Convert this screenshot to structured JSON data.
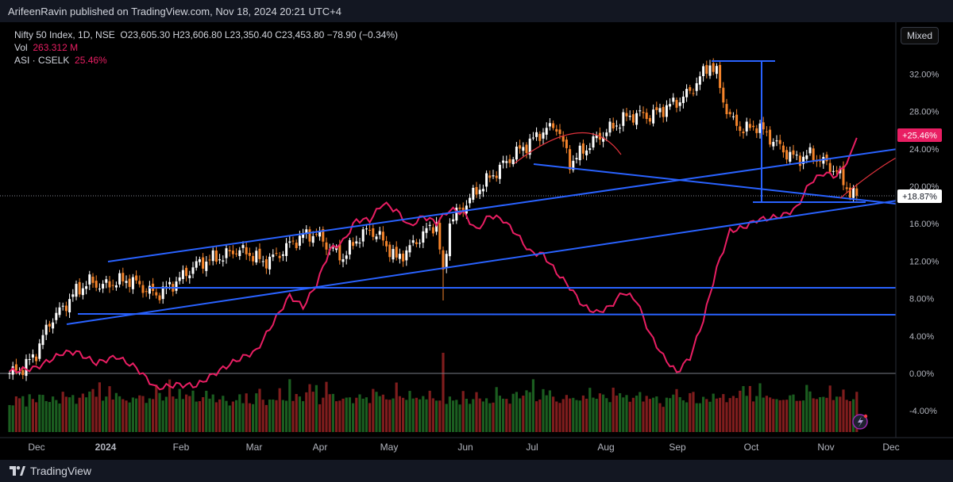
{
  "publisher": "ArifeenRavin published on TradingView.com, Nov 18, 2024 20:21 UTC+4",
  "brand": "TradingView",
  "mixed_label": "Mixed",
  "legend": {
    "symbol": "Nifty 50 Index, 1D, NSE",
    "ohlc": "O23,605.30  H23,606.80  L23,350.40  C23,453.80  −78.90 (−0.34%)",
    "vol_label": "Vol",
    "vol_value": "263.312 M",
    "asi_label": "ASI · CSELK",
    "asi_value": "25.46%"
  },
  "colors": {
    "up": "#ffffff",
    "down": "#f5842b",
    "asi": "#e91e63",
    "trendline": "#2962ff",
    "curve": "#e0323c",
    "vol_up": "#1b5e20",
    "vol_down": "#7f1d1d"
  },
  "chart_data": {
    "type": "candlestick",
    "symbol": "Nifty 50 Index",
    "interval": "1D",
    "exchange": "NSE",
    "y_axis_mode": "percent",
    "y_ticks": [
      "32.00%",
      "28.00%",
      "24.00%",
      "20.00%",
      "16.00%",
      "12.00%",
      "8.00%",
      "4.00%",
      "0.00%",
      "-4.00%"
    ],
    "y_tick_values": [
      32,
      28,
      24,
      20,
      16,
      12,
      8,
      4,
      0,
      -4
    ],
    "x_ticks": [
      "Dec",
      "2024",
      "Feb",
      "Mar",
      "Apr",
      "May",
      "Jun",
      "Jul",
      "Aug",
      "Sep",
      "Oct",
      "Nov",
      "Dec"
    ],
    "last_price_label": "+18.87%",
    "last_price_value": 18.87,
    "asi_label_badge": "+25.46%",
    "asi_value": 25.46,
    "price_path": [
      [
        0,
        0
      ],
      [
        4,
        0.5
      ],
      [
        8,
        2.2
      ],
      [
        12,
        5.5
      ],
      [
        16,
        7
      ],
      [
        20,
        8.8
      ],
      [
        24,
        9.8
      ],
      [
        28,
        9.3
      ],
      [
        32,
        9.8
      ],
      [
        36,
        10.0
      ],
      [
        40,
        9.2
      ],
      [
        44,
        8.4
      ],
      [
        48,
        9.3
      ],
      [
        52,
        10.4
      ],
      [
        56,
        11.6
      ],
      [
        60,
        12.2
      ],
      [
        64,
        12.5
      ],
      [
        68,
        13.2
      ],
      [
        72,
        12.8
      ],
      [
        76,
        11.9
      ],
      [
        80,
        12.5
      ],
      [
        84,
        13.8
      ],
      [
        88,
        14.7
      ],
      [
        92,
        14.9
      ],
      [
        96,
        13.4
      ],
      [
        100,
        12.4
      ],
      [
        104,
        14.3
      ],
      [
        108,
        15.4
      ],
      [
        112,
        14.2
      ],
      [
        116,
        12.2
      ],
      [
        120,
        13.4
      ],
      [
        124,
        14.9
      ],
      [
        128,
        16.1
      ],
      [
        130,
        10.3
      ],
      [
        132,
        16.3
      ],
      [
        136,
        17.8
      ],
      [
        140,
        19.5
      ],
      [
        144,
        20.9
      ],
      [
        148,
        22.3
      ],
      [
        152,
        23.6
      ],
      [
        156,
        24.7
      ],
      [
        160,
        25.9
      ],
      [
        164,
        26.5
      ],
      [
        168,
        22.5
      ],
      [
        172,
        23.8
      ],
      [
        176,
        25.1
      ],
      [
        180,
        26.1
      ],
      [
        184,
        27.2
      ],
      [
        188,
        27.7
      ],
      [
        192,
        27.5
      ],
      [
        196,
        28.3
      ],
      [
        200,
        29.0
      ],
      [
        204,
        30.1
      ],
      [
        208,
        32.1
      ],
      [
        210,
        33.1
      ],
      [
        212,
        32.0
      ],
      [
        214,
        29.2
      ],
      [
        216,
        27.3
      ],
      [
        220,
        26.0
      ],
      [
        224,
        26.5
      ],
      [
        228,
        25.2
      ],
      [
        232,
        23.8
      ],
      [
        236,
        22.9
      ],
      [
        240,
        23.4
      ],
      [
        244,
        22.6
      ],
      [
        248,
        21.6
      ],
      [
        250,
        20.5
      ],
      [
        252,
        19.3
      ],
      [
        254,
        18.9
      ]
    ],
    "asi_path": [
      [
        0,
        0.2
      ],
      [
        8,
        0.6
      ],
      [
        16,
        2.2
      ],
      [
        20,
        2.3
      ],
      [
        26,
        1.1
      ],
      [
        32,
        1.8
      ],
      [
        38,
        0.6
      ],
      [
        44,
        -1.6
      ],
      [
        50,
        -1.2
      ],
      [
        56,
        -1.3
      ],
      [
        62,
        0.1
      ],
      [
        68,
        1.4
      ],
      [
        74,
        2.4
      ],
      [
        80,
        6
      ],
      [
        84,
        8.3
      ],
      [
        88,
        7.1
      ],
      [
        92,
        9.5
      ],
      [
        96,
        13.2
      ],
      [
        100,
        14.1
      ],
      [
        104,
        16.4
      ],
      [
        108,
        16.4
      ],
      [
        112,
        18.2
      ],
      [
        116,
        17.4
      ],
      [
        120,
        15.7
      ],
      [
        124,
        16.8
      ],
      [
        128,
        16.1
      ],
      [
        132,
        17.5
      ],
      [
        136,
        17.2
      ],
      [
        140,
        15.3
      ],
      [
        144,
        16.9
      ],
      [
        148,
        16.4
      ],
      [
        152,
        14.9
      ],
      [
        156,
        13
      ],
      [
        160,
        12.7
      ],
      [
        164,
        10.8
      ],
      [
        168,
        9.2
      ],
      [
        172,
        7.2
      ],
      [
        176,
        6.5
      ],
      [
        180,
        7.1
      ],
      [
        184,
        8.7
      ],
      [
        188,
        7.8
      ],
      [
        192,
        4.2
      ],
      [
        196,
        1.8
      ],
      [
        200,
        0.1
      ],
      [
        204,
        1.7
      ],
      [
        208,
        5.7
      ],
      [
        212,
        11.2
      ],
      [
        216,
        15.2
      ],
      [
        220,
        15.6
      ],
      [
        224,
        16.4
      ],
      [
        228,
        16.6
      ],
      [
        232,
        16.9
      ],
      [
        236,
        17.7
      ],
      [
        240,
        20.4
      ],
      [
        244,
        21.4
      ],
      [
        248,
        21.1
      ],
      [
        252,
        23.1
      ],
      [
        254,
        25.46
      ]
    ],
    "volume_relative": [
      0.42,
      0.34,
      0.53,
      0.48,
      0.58,
      0.36,
      0.66,
      0.47,
      0.38,
      0.61,
      0.71,
      0.48,
      0.4,
      0.52,
      0.46,
      0.43,
      0.77,
      0.54,
      0.5,
      0.58,
      0.41,
      0.61,
      0.63,
      0.5,
      0.66,
      0.82,
      0.66,
      0.94,
      0.42,
      0.53,
      0.88,
      0.59,
      0.67,
      0.53,
      0.46,
      0.47,
      0.5,
      0.56,
      0.48,
      0.55,
      0.58,
      0.47,
      0.55,
      0.47,
      0.81,
      0.65,
      0.53,
      0.61,
      0.57,
      0.52,
      0.49,
      0.86,
      0.56,
      0.6,
      0.53,
      0.69,
      0.47,
      0.51,
      0.54,
      0.66,
      0.48,
      0.66,
      0.49,
      0.49,
      0.54
    ]
  }
}
